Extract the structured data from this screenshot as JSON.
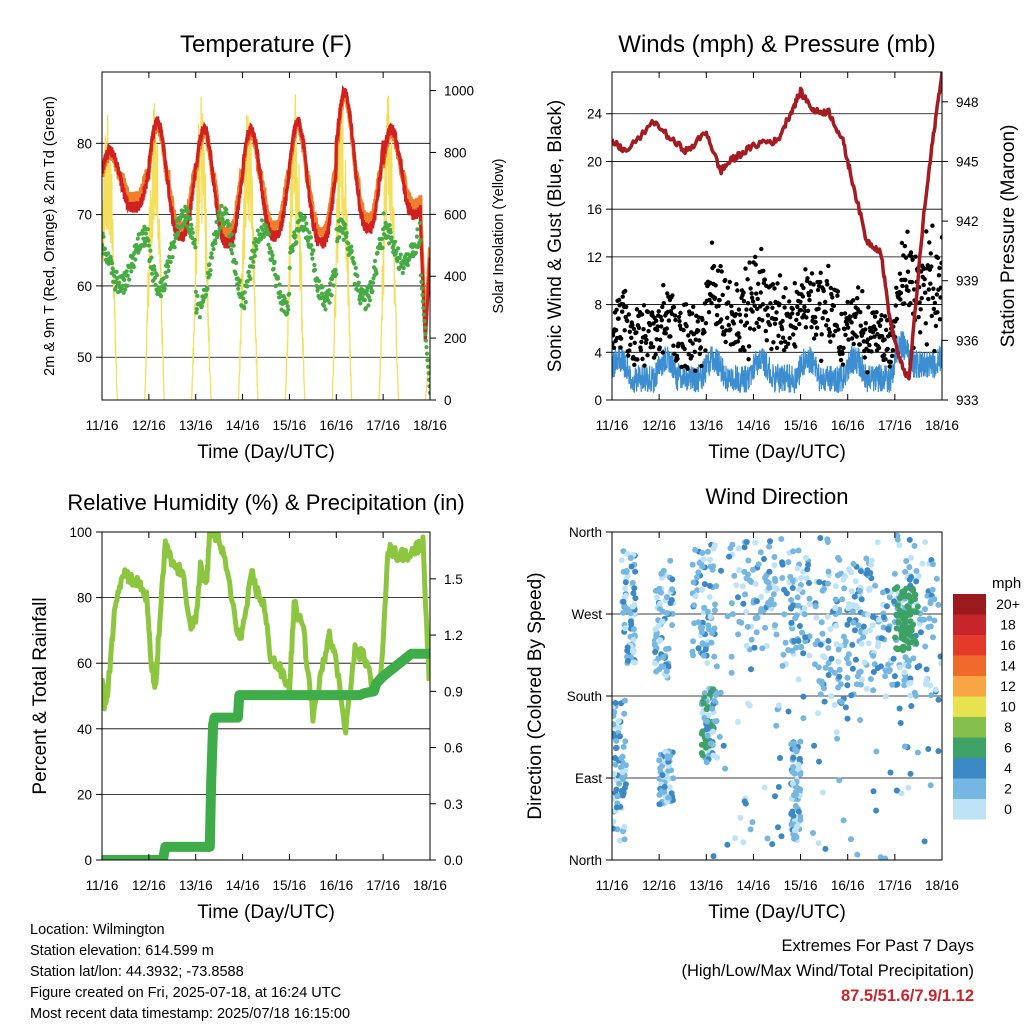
{
  "footer": {
    "location": "Location: Wilmington",
    "elevation": "Station elevation: 614.599 m",
    "latlon": "Station lat/lon: 44.3932; -73.8588",
    "created": "Figure created on Fri, 2025-07-18, at 16:24 UTC",
    "latest": "Most recent data timestamp: 2025/07/18 16:15:00"
  },
  "extremes": {
    "title": "Extremes For Past 7 Days",
    "subtitle": "(High/Low/Max Wind/Total Precipitation)",
    "values": "87.5/51.6/7.9/1.12"
  },
  "chart_data": [
    {
      "type": "line",
      "title": "Temperature (F)",
      "xlabel": "Time (Day/UTC)",
      "ylabel": "2m & 9m T (Red, Orange) & 2m Td (Green)",
      "y2label": "Solar Insolation (Yellow)",
      "x_ticks": [
        "11/16",
        "12/16",
        "13/16",
        "14/16",
        "15/16",
        "16/16",
        "17/16",
        "18/16"
      ],
      "xlim": [
        0,
        7
      ],
      "ylim": [
        44,
        90
      ],
      "y_ticks": [
        50,
        60,
        70,
        80
      ],
      "y2lim": [
        0,
        1060
      ],
      "y2_ticks": [
        0,
        200,
        400,
        600,
        800,
        1000
      ],
      "grid": true,
      "colors": {
        "t2m": "#d0201f",
        "t9m": "#f07e2a",
        "td2m": "#46ab42",
        "solar": "#f3df5c"
      },
      "daily": {
        "t_max": [
          79,
          83,
          82,
          82,
          83,
          87,
          82
        ],
        "t_min": [
          71,
          67,
          66,
          67,
          66,
          68,
          70
        ],
        "td_max": [
          67,
          70,
          70,
          68,
          69,
          68,
          69
        ],
        "td_min": [
          60,
          60,
          57,
          57,
          58,
          58,
          63
        ],
        "solar_peak": [
          990,
          1000,
          1020,
          1000,
          1000,
          1020,
          1000
        ],
        "t_final": [
          52,
          64
        ],
        "td_final": [
          50,
          45
        ]
      }
    },
    {
      "type": "scatter",
      "title": "Winds (mph) & Pressure (mb)",
      "xlabel": "Time (Day/UTC)",
      "ylabel": "Sonic Wind & Gust (Blue, Black)",
      "y2label": "Station Pressure (Maroon)",
      "x_ticks": [
        "11/16",
        "12/16",
        "13/16",
        "14/16",
        "15/16",
        "16/16",
        "17/16",
        "18/16"
      ],
      "xlim": [
        0,
        7
      ],
      "ylim": [
        0,
        27.5
      ],
      "y_ticks": [
        0,
        4,
        8,
        12,
        16,
        20,
        24
      ],
      "y2lim": [
        933,
        949.5
      ],
      "y2_ticks": [
        933,
        936,
        939,
        942,
        945,
        948
      ],
      "grid": true,
      "colors": {
        "wind": "#3d8ed0",
        "gust": "#000000",
        "pressure": "#a41c22"
      },
      "pressure_series": {
        "x": [
          0,
          0.3,
          0.9,
          1.3,
          1.6,
          2.0,
          2.3,
          2.5,
          2.8,
          3.2,
          3.5,
          3.8,
          4.0,
          4.3,
          4.6,
          4.9,
          5.1,
          5.4,
          5.7,
          5.9,
          6.1,
          6.3,
          6.6,
          6.8,
          7.0
        ],
        "y": [
          946,
          945.5,
          947,
          946,
          945.5,
          946.5,
          944.5,
          945,
          945.5,
          946,
          946,
          947.5,
          948.5,
          947.5,
          947.5,
          946,
          944,
          941,
          940.5,
          937,
          935,
          934,
          942,
          946,
          949.5
        ]
      }
    },
    {
      "type": "line",
      "title": "Relative Humidity (%) & Precipitation (in)",
      "xlabel": "Time (Day/UTC)",
      "ylabel": "Percent & Total Rainfall",
      "x_ticks": [
        "11/16",
        "12/16",
        "13/16",
        "14/16",
        "15/16",
        "16/16",
        "17/16",
        "18/16"
      ],
      "xlim": [
        0,
        7
      ],
      "ylim": [
        0,
        100
      ],
      "y_ticks": [
        0,
        20,
        40,
        60,
        80,
        100
      ],
      "y2lim": [
        0,
        1.75
      ],
      "y2_ticks": [
        "0.0",
        "0.3",
        "0.6",
        "0.9",
        "1.2",
        "1.5"
      ],
      "grid": true,
      "colors": {
        "rh": "#8cc63f",
        "precip": "#3ead49"
      },
      "rh_series": {
        "x": [
          0,
          0.05,
          0.12,
          0.2,
          0.3,
          0.45,
          0.6,
          0.8,
          0.95,
          1.05,
          1.15,
          1.2,
          1.35,
          1.5,
          1.7,
          1.9,
          2.0,
          2.1,
          2.2,
          2.25,
          2.3,
          2.5,
          2.7,
          2.9,
          3.0,
          3.2,
          3.3,
          3.45,
          3.6,
          3.8,
          4.0,
          4.1,
          4.3,
          4.5,
          4.7,
          4.85,
          5.0,
          5.2,
          5.4,
          5.6,
          5.8,
          5.95,
          6.1,
          6.3,
          6.5,
          6.7,
          6.85,
          7.0
        ],
        "y": [
          55,
          48,
          50,
          65,
          80,
          88,
          86,
          84,
          80,
          60,
          52,
          66,
          96,
          90,
          88,
          72,
          72,
          90,
          84,
          88,
          100,
          98,
          86,
          68,
          70,
          87,
          82,
          78,
          62,
          58,
          52,
          78,
          70,
          44,
          58,
          70,
          60,
          40,
          64,
          62,
          52,
          55,
          95,
          93,
          93,
          95,
          97,
          50
        ]
      },
      "precip_series": {
        "x": [
          0,
          1.3,
          1.35,
          2.3,
          2.33,
          2.37,
          2.4,
          2.9,
          2.93,
          5.5,
          5.6,
          5.8,
          5.85,
          6.0,
          6.2,
          6.4,
          6.6,
          7.0
        ],
        "y": [
          0,
          0,
          0.07,
          0.07,
          0.42,
          0.72,
          0.76,
          0.76,
          0.88,
          0.88,
          0.89,
          0.9,
          0.94,
          0.98,
          1.02,
          1.06,
          1.1,
          1.1
        ]
      }
    },
    {
      "type": "scatter",
      "title": "Wind Direction",
      "xlabel": "Time (Day/UTC)",
      "ylabel": "Direction (Colored By Speed)",
      "x_ticks": [
        "11/16",
        "12/16",
        "13/16",
        "14/16",
        "15/16",
        "16/16",
        "17/16",
        "18/16"
      ],
      "xlim": [
        0,
        7
      ],
      "ylim": [
        0,
        360
      ],
      "y_tick_labels": [
        "North",
        "East",
        "South",
        "West",
        "North"
      ],
      "y_tick_values": [
        0,
        90,
        180,
        270,
        360
      ],
      "grid": true,
      "legend": {
        "title": "mph",
        "placement": "right",
        "labels": [
          "20+",
          "18",
          "16",
          "14",
          "12",
          "10",
          "8",
          "6",
          "4",
          "2",
          "0"
        ],
        "colors": [
          "#9b1a1e",
          "#c7242b",
          "#e33a2b",
          "#f06a2c",
          "#f8a544",
          "#e7e24f",
          "#84c04b",
          "#3da263",
          "#3b88c5",
          "#76b7e1",
          "#bfe3f6"
        ]
      }
    }
  ]
}
